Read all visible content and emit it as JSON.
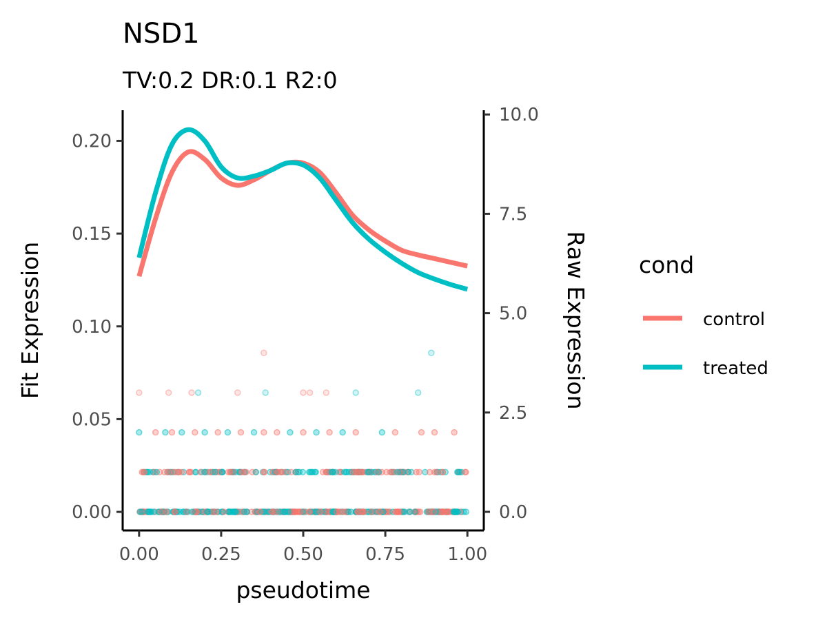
{
  "chart_data": {
    "type": "line",
    "title": "NSD1",
    "subtitle": "TV:0.2 DR:0.1 R2:0",
    "xlabel": "pseudotime",
    "ylabel": "Fit Expression",
    "y2label": "Raw Expression",
    "xlim": [
      -0.05,
      1.05
    ],
    "ylim": [
      -0.01,
      0.2165
    ],
    "y2lim": [
      -0.4679,
      10.1073
    ],
    "x_ticks": [
      "0.00",
      "0.25",
      "0.50",
      "0.75",
      "1.00"
    ],
    "y_ticks": [
      "0.00",
      "0.05",
      "0.10",
      "0.15",
      "0.20"
    ],
    "y2_ticks": [
      "0.0",
      "2.5",
      "5.0",
      "7.5",
      "10.0"
    ],
    "grid": false,
    "legend": {
      "title": "cond",
      "position": "right",
      "entries": [
        {
          "label": "control",
          "color": "#F8766D"
        },
        {
          "label": "treated",
          "color": "#00BFC4"
        }
      ]
    },
    "series": [
      {
        "name": "control",
        "color": "#F8766D",
        "x": [
          0.0,
          0.05,
          0.1,
          0.15,
          0.2,
          0.25,
          0.3,
          0.35,
          0.4,
          0.45,
          0.5,
          0.55,
          0.6,
          0.65,
          0.7,
          0.75,
          0.8,
          0.85,
          0.9,
          0.95,
          1.0
        ],
        "y": [
          0.127,
          0.158,
          0.183,
          0.194,
          0.19,
          0.18,
          0.176,
          0.179,
          0.184,
          0.188,
          0.188,
          0.183,
          0.172,
          0.16,
          0.152,
          0.146,
          0.141,
          0.1385,
          0.1365,
          0.1345,
          0.1325
        ]
      },
      {
        "name": "treated",
        "color": "#00BFC4",
        "x": [
          0.0,
          0.05,
          0.1,
          0.15,
          0.2,
          0.25,
          0.3,
          0.35,
          0.4,
          0.45,
          0.5,
          0.55,
          0.6,
          0.65,
          0.7,
          0.75,
          0.8,
          0.85,
          0.9,
          0.95,
          1.0
        ],
        "y": [
          0.137,
          0.172,
          0.198,
          0.206,
          0.2,
          0.186,
          0.18,
          0.181,
          0.184,
          0.188,
          0.187,
          0.18,
          0.168,
          0.156,
          0.147,
          0.14,
          0.134,
          0.129,
          0.1255,
          0.1225,
          0.12
        ]
      }
    ],
    "raw_points": [
      {
        "x": 0.0,
        "y": 3,
        "cond": "control"
      },
      {
        "x": 0.09,
        "y": 3,
        "cond": "control"
      },
      {
        "x": 0.16,
        "y": 3,
        "cond": "control"
      },
      {
        "x": 0.18,
        "y": 3,
        "cond": "treated"
      },
      {
        "x": 0.3,
        "y": 3,
        "cond": "control"
      },
      {
        "x": 0.38,
        "y": 4,
        "cond": "control"
      },
      {
        "x": 0.385,
        "y": 3,
        "cond": "treated"
      },
      {
        "x": 0.5,
        "y": 3,
        "cond": "control"
      },
      {
        "x": 0.52,
        "y": 3,
        "cond": "control"
      },
      {
        "x": 0.57,
        "y": 3,
        "cond": "control"
      },
      {
        "x": 0.66,
        "y": 3,
        "cond": "treated"
      },
      {
        "x": 0.85,
        "y": 3,
        "cond": "treated"
      },
      {
        "x": 0.89,
        "y": 4,
        "cond": "treated"
      },
      {
        "x": 0.0,
        "y": 2,
        "cond": "treated"
      },
      {
        "x": 0.05,
        "y": 2,
        "cond": "control"
      },
      {
        "x": 0.08,
        "y": 2,
        "cond": "treated"
      },
      {
        "x": 0.1,
        "y": 2,
        "cond": "control"
      },
      {
        "x": 0.13,
        "y": 2,
        "cond": "treated"
      },
      {
        "x": 0.17,
        "y": 2,
        "cond": "control"
      },
      {
        "x": 0.2,
        "y": 2,
        "cond": "treated"
      },
      {
        "x": 0.24,
        "y": 2,
        "cond": "control"
      },
      {
        "x": 0.27,
        "y": 2,
        "cond": "treated"
      },
      {
        "x": 0.31,
        "y": 2,
        "cond": "control"
      },
      {
        "x": 0.35,
        "y": 2,
        "cond": "treated"
      },
      {
        "x": 0.38,
        "y": 2,
        "cond": "control"
      },
      {
        "x": 0.42,
        "y": 2,
        "cond": "control"
      },
      {
        "x": 0.46,
        "y": 2,
        "cond": "treated"
      },
      {
        "x": 0.5,
        "y": 2,
        "cond": "control"
      },
      {
        "x": 0.54,
        "y": 2,
        "cond": "treated"
      },
      {
        "x": 0.58,
        "y": 2,
        "cond": "control"
      },
      {
        "x": 0.62,
        "y": 2,
        "cond": "treated"
      },
      {
        "x": 0.66,
        "y": 2,
        "cond": "control"
      },
      {
        "x": 0.74,
        "y": 2,
        "cond": "treated"
      },
      {
        "x": 0.78,
        "y": 2,
        "cond": "control"
      },
      {
        "x": 0.86,
        "y": 2,
        "cond": "control"
      },
      {
        "x": 0.9,
        "y": 2,
        "cond": "control"
      },
      {
        "x": 0.96,
        "y": 2,
        "cond": "control"
      }
    ],
    "raw_bands": [
      {
        "y": 1,
        "note_density": "dense"
      },
      {
        "y": 0,
        "note_density": "very dense"
      }
    ]
  }
}
